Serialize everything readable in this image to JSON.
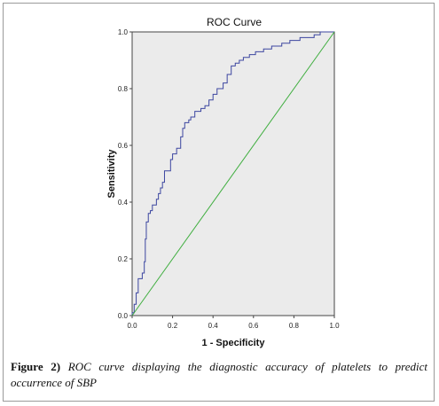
{
  "chart_data": {
    "type": "line",
    "title": "ROC Curve",
    "xlabel": "1 - Specificity",
    "ylabel": "Sensitivity",
    "xlim": [
      0,
      1
    ],
    "ylim": [
      0,
      1
    ],
    "xticks": [
      "0.0",
      "0.2",
      "0.4",
      "0.6",
      "0.8",
      "1.0"
    ],
    "yticks": [
      "0.0",
      "0.2",
      "0.4",
      "0.6",
      "0.8",
      "1.0"
    ],
    "grid": false,
    "plot_background": "#ebebeb",
    "series": [
      {
        "color": "#3c46a0",
        "points": [
          [
            0.0,
            0.0
          ],
          [
            0.0,
            0.01
          ],
          [
            0.01,
            0.01
          ],
          [
            0.01,
            0.04
          ],
          [
            0.02,
            0.04
          ],
          [
            0.02,
            0.08
          ],
          [
            0.03,
            0.08
          ],
          [
            0.03,
            0.13
          ],
          [
            0.05,
            0.13
          ],
          [
            0.05,
            0.15
          ],
          [
            0.06,
            0.15
          ],
          [
            0.06,
            0.19
          ],
          [
            0.065,
            0.19
          ],
          [
            0.065,
            0.27
          ],
          [
            0.07,
            0.27
          ],
          [
            0.07,
            0.33
          ],
          [
            0.08,
            0.33
          ],
          [
            0.08,
            0.36
          ],
          [
            0.09,
            0.36
          ],
          [
            0.09,
            0.37
          ],
          [
            0.1,
            0.37
          ],
          [
            0.1,
            0.39
          ],
          [
            0.12,
            0.39
          ],
          [
            0.12,
            0.41
          ],
          [
            0.13,
            0.41
          ],
          [
            0.13,
            0.43
          ],
          [
            0.14,
            0.43
          ],
          [
            0.14,
            0.45
          ],
          [
            0.15,
            0.45
          ],
          [
            0.15,
            0.47
          ],
          [
            0.16,
            0.47
          ],
          [
            0.16,
            0.51
          ],
          [
            0.19,
            0.51
          ],
          [
            0.19,
            0.55
          ],
          [
            0.2,
            0.55
          ],
          [
            0.2,
            0.57
          ],
          [
            0.22,
            0.57
          ],
          [
            0.22,
            0.59
          ],
          [
            0.24,
            0.59
          ],
          [
            0.24,
            0.63
          ],
          [
            0.25,
            0.63
          ],
          [
            0.25,
            0.66
          ],
          [
            0.26,
            0.66
          ],
          [
            0.26,
            0.68
          ],
          [
            0.28,
            0.68
          ],
          [
            0.28,
            0.69
          ],
          [
            0.29,
            0.69
          ],
          [
            0.29,
            0.7
          ],
          [
            0.31,
            0.7
          ],
          [
            0.31,
            0.72
          ],
          [
            0.34,
            0.72
          ],
          [
            0.34,
            0.73
          ],
          [
            0.36,
            0.73
          ],
          [
            0.36,
            0.74
          ],
          [
            0.38,
            0.74
          ],
          [
            0.38,
            0.76
          ],
          [
            0.4,
            0.76
          ],
          [
            0.4,
            0.78
          ],
          [
            0.42,
            0.78
          ],
          [
            0.42,
            0.8
          ],
          [
            0.45,
            0.8
          ],
          [
            0.45,
            0.82
          ],
          [
            0.47,
            0.82
          ],
          [
            0.47,
            0.85
          ],
          [
            0.49,
            0.85
          ],
          [
            0.49,
            0.88
          ],
          [
            0.51,
            0.88
          ],
          [
            0.51,
            0.89
          ],
          [
            0.53,
            0.89
          ],
          [
            0.53,
            0.9
          ],
          [
            0.55,
            0.9
          ],
          [
            0.55,
            0.91
          ],
          [
            0.58,
            0.91
          ],
          [
            0.58,
            0.92
          ],
          [
            0.61,
            0.92
          ],
          [
            0.61,
            0.93
          ],
          [
            0.65,
            0.93
          ],
          [
            0.65,
            0.94
          ],
          [
            0.69,
            0.94
          ],
          [
            0.69,
            0.95
          ],
          [
            0.74,
            0.95
          ],
          [
            0.74,
            0.96
          ],
          [
            0.78,
            0.96
          ],
          [
            0.78,
            0.97
          ],
          [
            0.83,
            0.97
          ],
          [
            0.83,
            0.98
          ],
          [
            0.9,
            0.98
          ],
          [
            0.9,
            0.99
          ],
          [
            0.93,
            0.99
          ],
          [
            0.93,
            1.0
          ],
          [
            1.0,
            1.0
          ]
        ]
      },
      {
        "color": "#3fae3f",
        "points": [
          [
            0,
            0
          ],
          [
            1,
            1
          ]
        ]
      }
    ]
  },
  "caption": {
    "label": "Figure 2)",
    "text": "ROC curve displaying the diagnostic accuracy of platelets to predict occurrence of SBP"
  }
}
